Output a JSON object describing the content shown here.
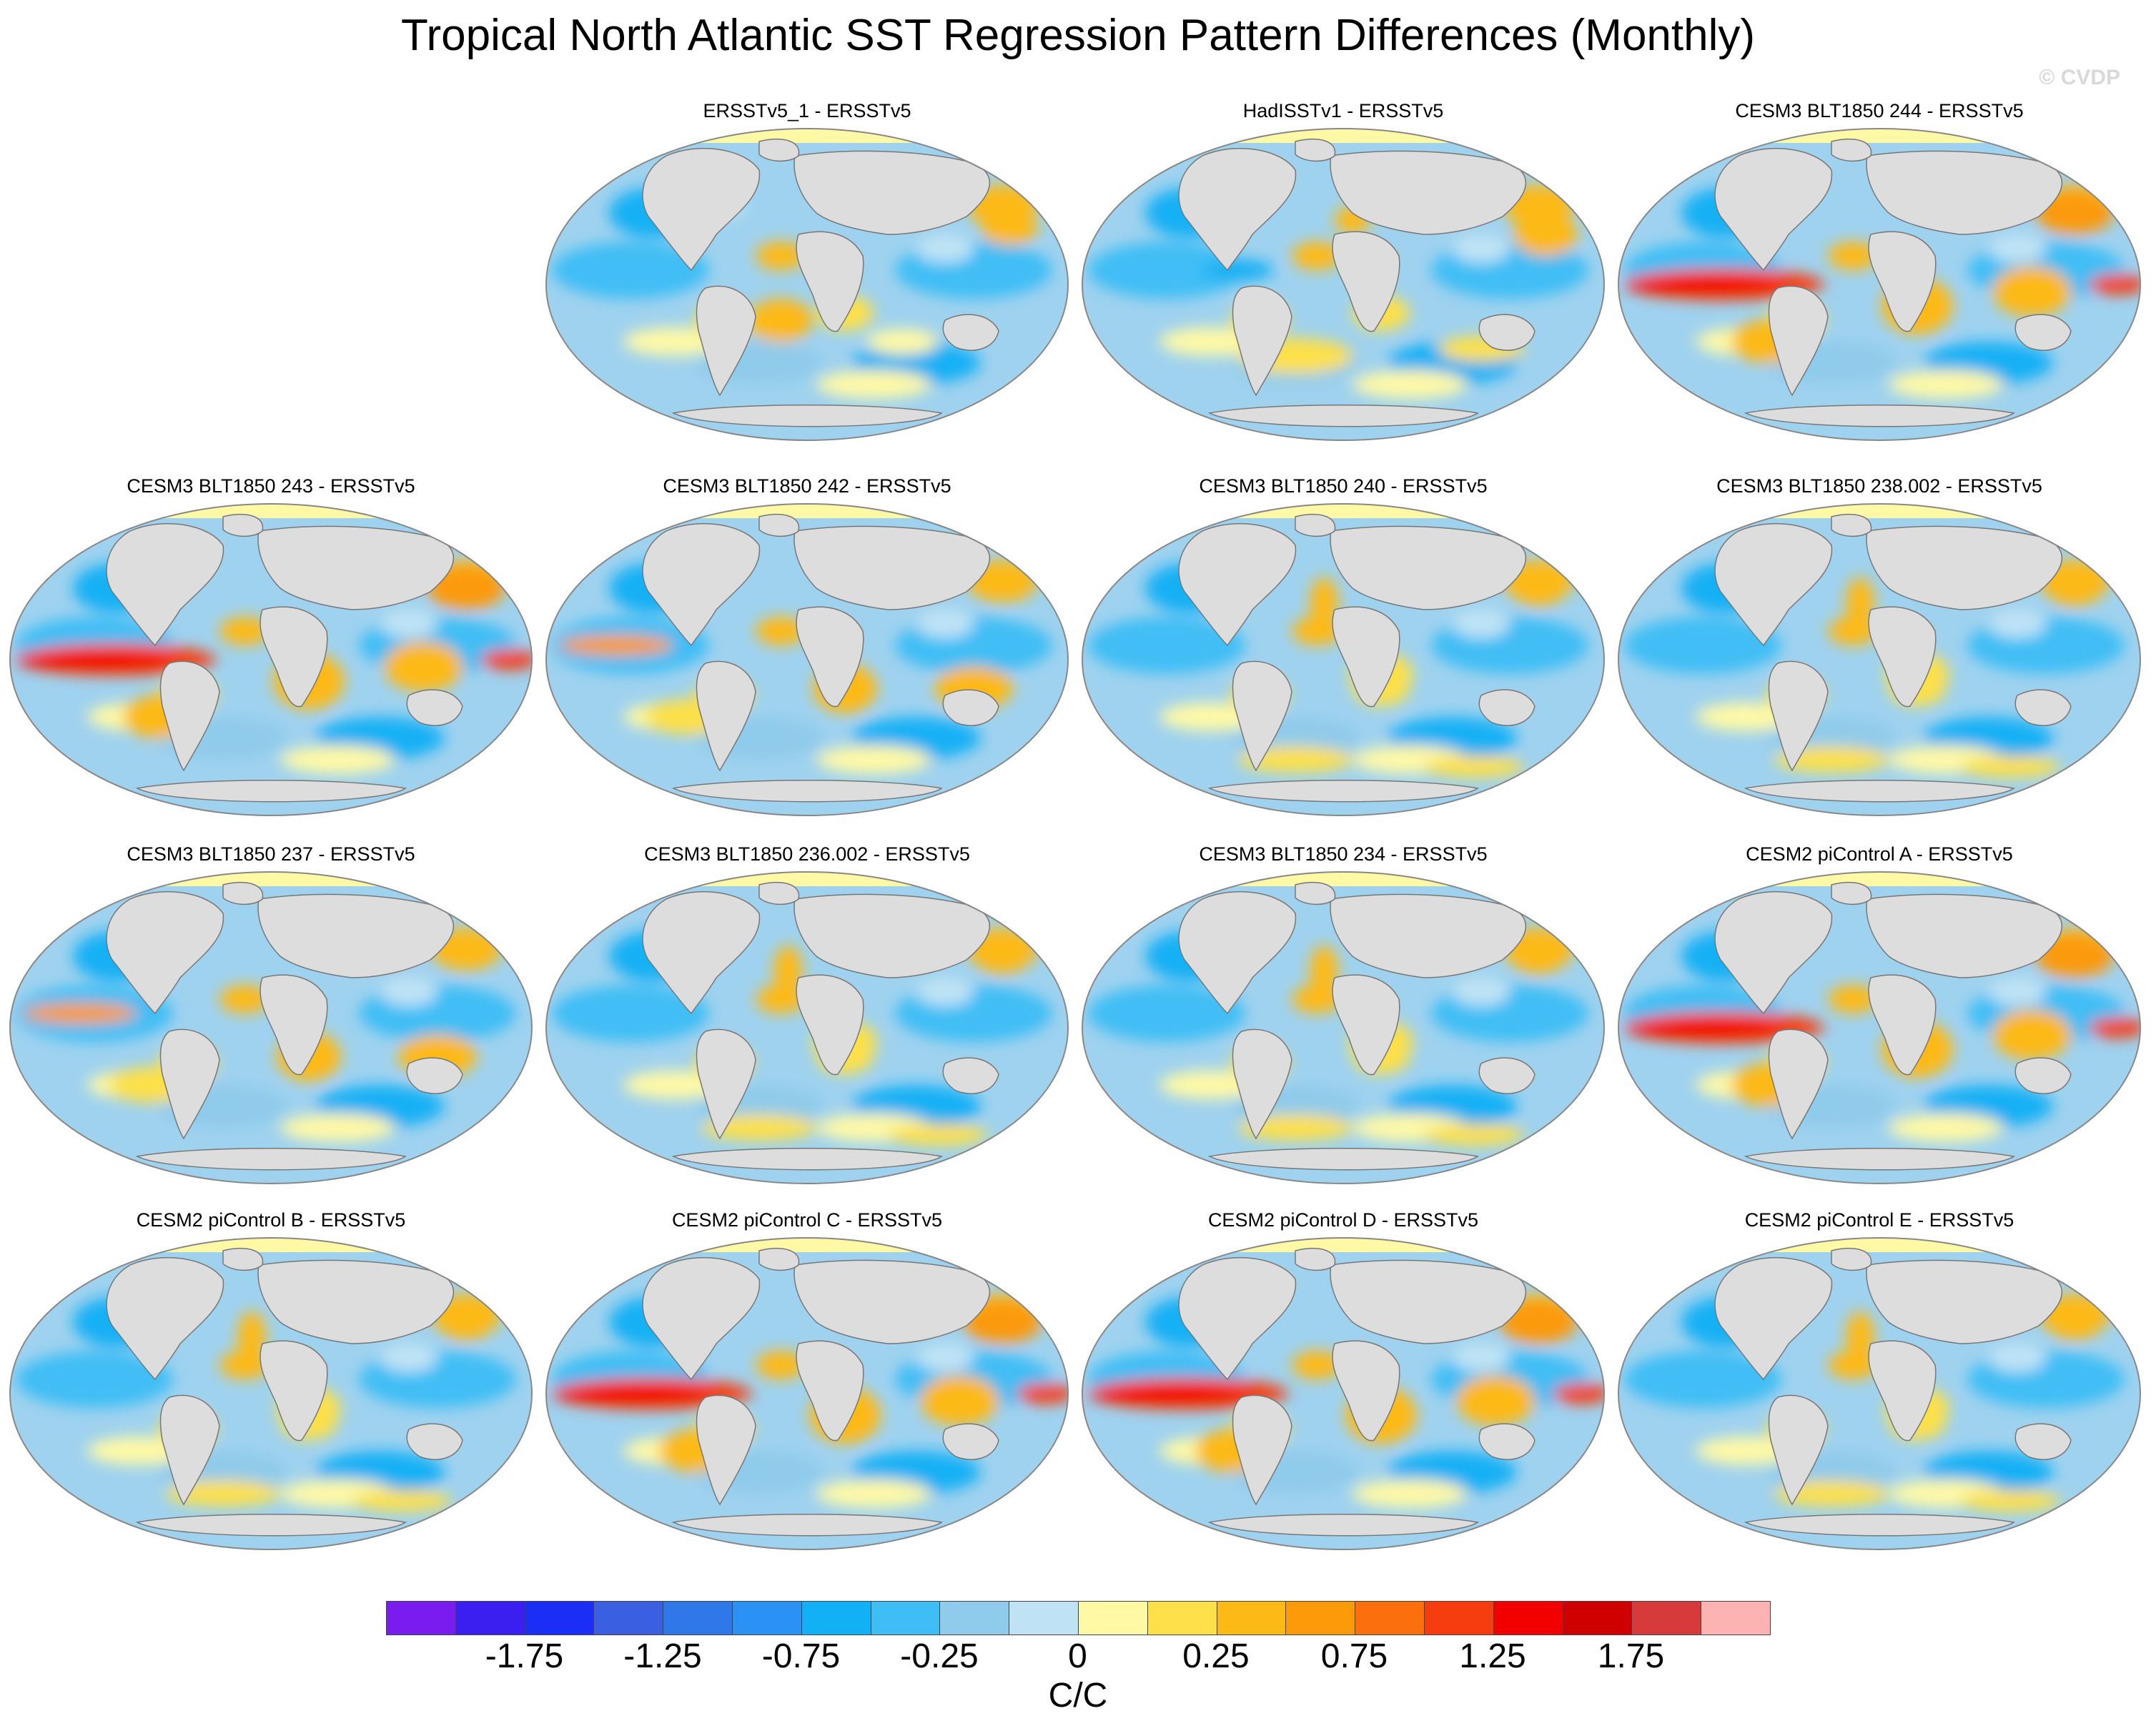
{
  "title": "Tropical North Atlantic SST Regression Pattern Differences (Monthly)",
  "watermark": "© CVDP",
  "colors": {
    "land": "#dddddd",
    "ocean_base": "#9fd2ef",
    "border": "#888888"
  },
  "panels": [
    {
      "title": "ERSSTv5_1 - ERSSTv5",
      "style": "obs1"
    },
    {
      "title": "HadISSTv1 - ERSSTv5",
      "style": "obs2"
    },
    {
      "title": "CESM3 BLT1850 244 - ERSSTv5",
      "style": "enso"
    },
    {
      "title": "CESM3 BLT1850 243 - ERSSTv5",
      "style": "enso"
    },
    {
      "title": "CESM3 BLT1850 242 - ERSSTv5",
      "style": "mixed"
    },
    {
      "title": "CESM3 BLT1850 240 - ERSSTv5",
      "style": "cool"
    },
    {
      "title": "CESM3 BLT1850 238.002 - ERSSTv5",
      "style": "cool"
    },
    {
      "title": "CESM3 BLT1850 237 - ERSSTv5",
      "style": "mixed"
    },
    {
      "title": "CESM3 BLT1850 236.002 - ERSSTv5",
      "style": "cool"
    },
    {
      "title": "CESM3 BLT1850 234 - ERSSTv5",
      "style": "cool"
    },
    {
      "title": "CESM2 piControl A - ERSSTv5",
      "style": "enso"
    },
    {
      "title": "CESM2 piControl B - ERSSTv5",
      "style": "cool"
    },
    {
      "title": "CESM2 piControl C - ERSSTv5",
      "style": "enso"
    },
    {
      "title": "CESM2 piControl D - ERSSTv5",
      "style": "enso"
    },
    {
      "title": "CESM2 piControl E - ERSSTv5",
      "style": "cool"
    }
  ],
  "colorbar": {
    "colors": [
      "#7a1cf0",
      "#3a1ff0",
      "#1a2ef5",
      "#3a5fe0",
      "#2f78ea",
      "#2a92f2",
      "#12b0f5",
      "#3fbef5",
      "#8fcbeb",
      "#bfe3f5",
      "#fff9a6",
      "#fde04a",
      "#fdb916",
      "#fc9a0a",
      "#fb700d",
      "#f53d10",
      "#f20000",
      "#d10000",
      "#d63a3a",
      "#feb3b3"
    ],
    "tick_labels": [
      "-1.75",
      "-1.25",
      "-0.75",
      "-0.25",
      "0",
      "0.25",
      "0.75",
      "1.25",
      "1.75"
    ],
    "units": "C/C"
  }
}
